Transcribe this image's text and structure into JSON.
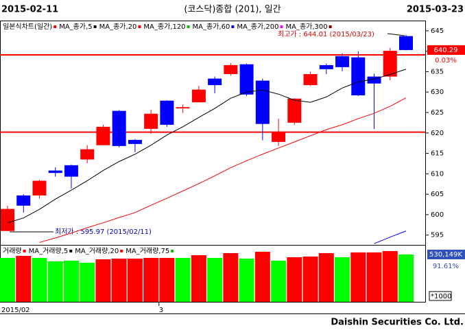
{
  "chart_data": {
    "type": "candlestick",
    "header": {
      "left": "2015-02-11",
      "center": "(코스닥)종합 (201), 일간",
      "right": "2015-03-23"
    },
    "chart_label": "일본식차트(일간)",
    "up_color": "#ff0000",
    "down_color": "#0000ff",
    "categories": [
      "2015/02",
      null,
      null,
      null,
      null,
      null,
      null,
      null,
      null,
      null,
      "3",
      null,
      null,
      null,
      null,
      null,
      null,
      null,
      null,
      null,
      null,
      null,
      null,
      null,
      null,
      null
    ],
    "open": [
      596.0,
      604.7,
      604.7,
      610.8,
      612.1,
      613.5,
      617.0,
      625.4,
      618.3,
      621.0,
      627.9,
      626.0,
      627.5,
      633.3,
      634.4,
      636.8,
      632.8,
      617.8,
      622.5,
      631.7,
      636.6,
      638.8,
      638.5,
      633.8,
      633.8,
      643.7
    ],
    "high": [
      602.2,
      605.0,
      608.5,
      611.6,
      612.3,
      617.0,
      622.0,
      625.6,
      618.5,
      625.7,
      628.0,
      627.0,
      631.5,
      633.8,
      637.1,
      637.0,
      633.3,
      623.5,
      628.5,
      635.0,
      637.0,
      639.5,
      640.0,
      634.5,
      640.8,
      644.01
    ],
    "low": [
      595.97,
      600.5,
      604.0,
      609.3,
      606.4,
      612.6,
      617.0,
      616.5,
      615.3,
      619.8,
      621.5,
      624.9,
      627.5,
      629.7,
      634.0,
      629.0,
      618.2,
      616.8,
      622.0,
      631.5,
      634.4,
      635.1,
      629.0,
      621.0,
      632.9,
      640.2
    ],
    "close": [
      601.4,
      602.2,
      608.3,
      610.2,
      609.3,
      616.0,
      621.5,
      616.8,
      617.3,
      624.7,
      622.0,
      626.3,
      630.6,
      631.7,
      636.6,
      629.4,
      622.2,
      620.2,
      628.4,
      634.4,
      635.6,
      636.1,
      629.2,
      632.1,
      640.1,
      640.29
    ],
    "ma": [
      {
        "name": "MA_종가,5",
        "color": "#000000",
        "values": [
          598.0,
          599.2,
          601.3,
          603.8,
          606.0,
          608.3,
          610.8,
          613.0,
          614.8,
          617.0,
          619.5,
          621.5,
          623.8,
          626.0,
          628.5,
          630.0,
          630.5,
          629.5,
          628.0,
          627.5,
          628.8,
          631.0,
          632.5,
          633.2,
          634.3,
          635.6
        ]
      },
      {
        "name": "MA_종가,20",
        "color": "#ff0000",
        "values": [
          null,
          null,
          593.2,
          594.3,
          595.5,
          596.8,
          598.0,
          599.3,
          600.5,
          602.3,
          604.0,
          605.8,
          607.6,
          609.5,
          611.5,
          613.2,
          614.8,
          616.3,
          617.8,
          619.3,
          620.8,
          622.0,
          623.5,
          624.8,
          626.5,
          628.6
        ]
      },
      {
        "name": "MA_종가,120",
        "color": "#00c000"
      },
      {
        "name": "MA_종가,60",
        "color": "#0000ff",
        "values": [
          null,
          null,
          null,
          null,
          null,
          null,
          null,
          null,
          null,
          null,
          null,
          null,
          null,
          null,
          null,
          null,
          null,
          null,
          null,
          null,
          null,
          null,
          null,
          592.9,
          594.5,
          596.0
        ]
      },
      {
        "name": "MA_종가,200",
        "color": "#ff00ff"
      },
      {
        "name": "MA_종가,300",
        "color": "#800000"
      }
    ],
    "hlines": [
      639.1,
      620.2
    ],
    "ylim": [
      592.6,
      647.5
    ],
    "yticks": [
      645,
      640,
      635,
      630,
      625,
      620,
      615,
      610,
      605,
      600,
      595
    ],
    "last_price": 640.29,
    "last_change": "0.03%",
    "high_note": "최고가 : 644.01 (2015/03/23)",
    "low_note": "최저가 : 595.97 (2015/02/11)",
    "volume": {
      "title": "거래량",
      "title_color": "#ff0000",
      "legend": [
        {
          "name": "MA_거래량,5",
          "color": "#000000"
        },
        {
          "name": "MA_거래량,20",
          "color": "#ff0000"
        },
        {
          "name": "MA_거래량,75",
          "color": "#00c000"
        }
      ],
      "values": [
        491700,
        514800,
        491700,
        453300,
        461000,
        437900,
        476400,
        484000,
        484000,
        491700,
        491700,
        491700,
        522500,
        491700,
        545500,
        484000,
        560900,
        461000,
        499400,
        507100,
        545500,
        499400,
        553200,
        553200,
        568600,
        530149
      ],
      "colors": [
        "#00ff00",
        "#ff0000",
        "#00ff00",
        "#00ff00",
        "#00ff00",
        "#00ff00",
        "#ff0000",
        "#ff0000",
        "#ff0000",
        "#ff0000",
        "#ff0000",
        "#00ff00",
        "#ff0000",
        "#00ff00",
        "#ff0000",
        "#00ff00",
        "#ff0000",
        "#00ff00",
        "#ff0000",
        "#ff0000",
        "#ff0000",
        "#00ff00",
        "#ff0000",
        "#ff0000",
        "#ff0000",
        "#00ff00"
      ],
      "ylim": [
        0,
        630000
      ],
      "top_label": {
        "value": 530149,
        "label": "530,149K"
      },
      "ratio": "91.61%",
      "unit": "*1000"
    },
    "footer": "Daishin Securities Co. Ltd."
  }
}
